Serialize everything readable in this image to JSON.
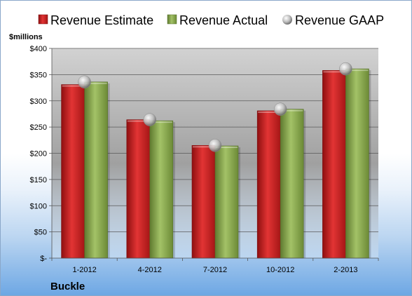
{
  "chart_data": {
    "type": "bar",
    "title": "",
    "unit_label": "$millions",
    "company": "Buckle",
    "categories": [
      "1-2012",
      "4-2012",
      "7-2012",
      "10-2012",
      "2-2013"
    ],
    "y_ticks": [
      "$-",
      "$50",
      "$100",
      "$150",
      "$200",
      "$250",
      "$300",
      "$350",
      "$400"
    ],
    "ylim": [
      0,
      400
    ],
    "grid": true,
    "legend_position": "top",
    "series": [
      {
        "name": "Revenue Estimate",
        "type": "bar",
        "color": "#d42a2a",
        "values": [
          331,
          264,
          215,
          281,
          358
        ]
      },
      {
        "name": "Revenue Actual",
        "type": "bar",
        "color": "#8fae55",
        "values": [
          336,
          262,
          214,
          284,
          361
        ]
      },
      {
        "name": "Revenue GAAP",
        "type": "scatter",
        "color": "#bfbfbf",
        "values": [
          336,
          264,
          215,
          284,
          361
        ]
      }
    ]
  }
}
